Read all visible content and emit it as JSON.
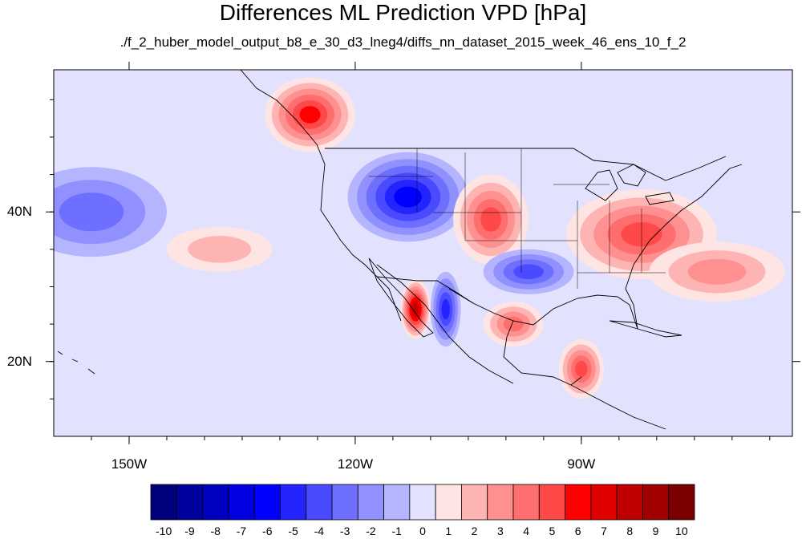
{
  "title": "Differences ML Prediction VPD [hPa]",
  "subtitle": "./f_2_huber_model_output_b8_e_30_d3_lneg4/diffs_nn_dataset_2015_week_46_ens_10_f_2",
  "map": {
    "lon_range": [
      -160,
      -62
    ],
    "lat_range": [
      10,
      59
    ],
    "lon_ticks": [
      {
        "value": -150,
        "label": "150W"
      },
      {
        "value": -120,
        "label": "120W"
      },
      {
        "value": -90,
        "label": "90W"
      }
    ],
    "lat_ticks": [
      {
        "value": 40,
        "label": "40N"
      },
      {
        "value": 20,
        "label": "20N"
      }
    ]
  },
  "colorbar": {
    "colors": [
      "#00007a",
      "#00009d",
      "#0000c0",
      "#0000e0",
      "#0000ff",
      "#2424ff",
      "#4a4aff",
      "#6e6eff",
      "#9090ff",
      "#b4b4ff",
      "#e2e2ff",
      "#ffe4e4",
      "#ffb4b4",
      "#ff9090",
      "#ff6e6e",
      "#ff4848",
      "#ff0000",
      "#e00000",
      "#c00000",
      "#a00000",
      "#7a0000"
    ],
    "labels": [
      "-10",
      "-9",
      "-8",
      "-7",
      "-6",
      "-5",
      "-4",
      "-3",
      "-2",
      "-1",
      "0",
      "1",
      "2",
      "3",
      "4",
      "5",
      "6",
      "7",
      "8",
      "9",
      "10"
    ]
  },
  "features": [
    {
      "name": "pacific-nw-red",
      "value": 6,
      "lon": -126,
      "lat": 53,
      "rx": 6,
      "ry": 5
    },
    {
      "name": "great-basin-blue",
      "value": -6,
      "lon": -113,
      "lat": 42,
      "rx": 8,
      "ry": 6
    },
    {
      "name": "central-plains-red",
      "value": 5,
      "lon": -102,
      "lat": 39,
      "rx": 5,
      "ry": 6
    },
    {
      "name": "east-us-red",
      "value": 5,
      "lon": -82,
      "lat": 37,
      "rx": 10,
      "ry": 6
    },
    {
      "name": "baja-red",
      "value": 8,
      "lon": -112,
      "lat": 27,
      "rx": 2,
      "ry": 4
    },
    {
      "name": "sonora-blue",
      "value": -5,
      "lon": -108,
      "lat": 27,
      "rx": 2,
      "ry": 5
    },
    {
      "name": "texas-blue",
      "value": -4,
      "lon": -97,
      "lat": 32,
      "rx": 6,
      "ry": 3
    },
    {
      "name": "gulf-red",
      "value": 4,
      "lon": -99,
      "lat": 25,
      "rx": 4,
      "ry": 3
    },
    {
      "name": "yucatan-red",
      "value": 5,
      "lon": -90,
      "lat": 19,
      "rx": 3,
      "ry": 4
    },
    {
      "name": "east-pacific-blue",
      "value": -3,
      "lon": -155,
      "lat": 40,
      "rx": 10,
      "ry": 6
    },
    {
      "name": "mid-pacific-red",
      "value": 2,
      "lon": -138,
      "lat": 35,
      "rx": 7,
      "ry": 3
    },
    {
      "name": "atlantic-red",
      "value": 3,
      "lon": -72,
      "lat": 32,
      "rx": 9,
      "ry": 4
    }
  ]
}
